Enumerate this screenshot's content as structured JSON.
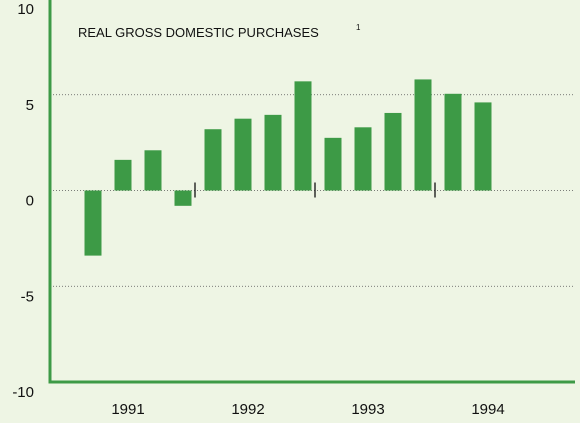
{
  "chart_data": {
    "type": "bar",
    "title": "REAL GROSS DOMESTIC PURCHASES",
    "title_footnote": "1",
    "years": [
      "1991",
      "1992",
      "1993",
      "1994"
    ],
    "values": [
      -3.4,
      1.6,
      2.1,
      -0.8,
      3.2,
      3.75,
      3.95,
      5.7,
      2.75,
      3.3,
      4.05,
      5.8,
      5.05,
      4.6
    ],
    "color": "#3d9a46",
    "ylim": [
      -10,
      10
    ],
    "yticks": [
      -10,
      -5,
      0,
      5,
      10
    ],
    "grid": true
  }
}
